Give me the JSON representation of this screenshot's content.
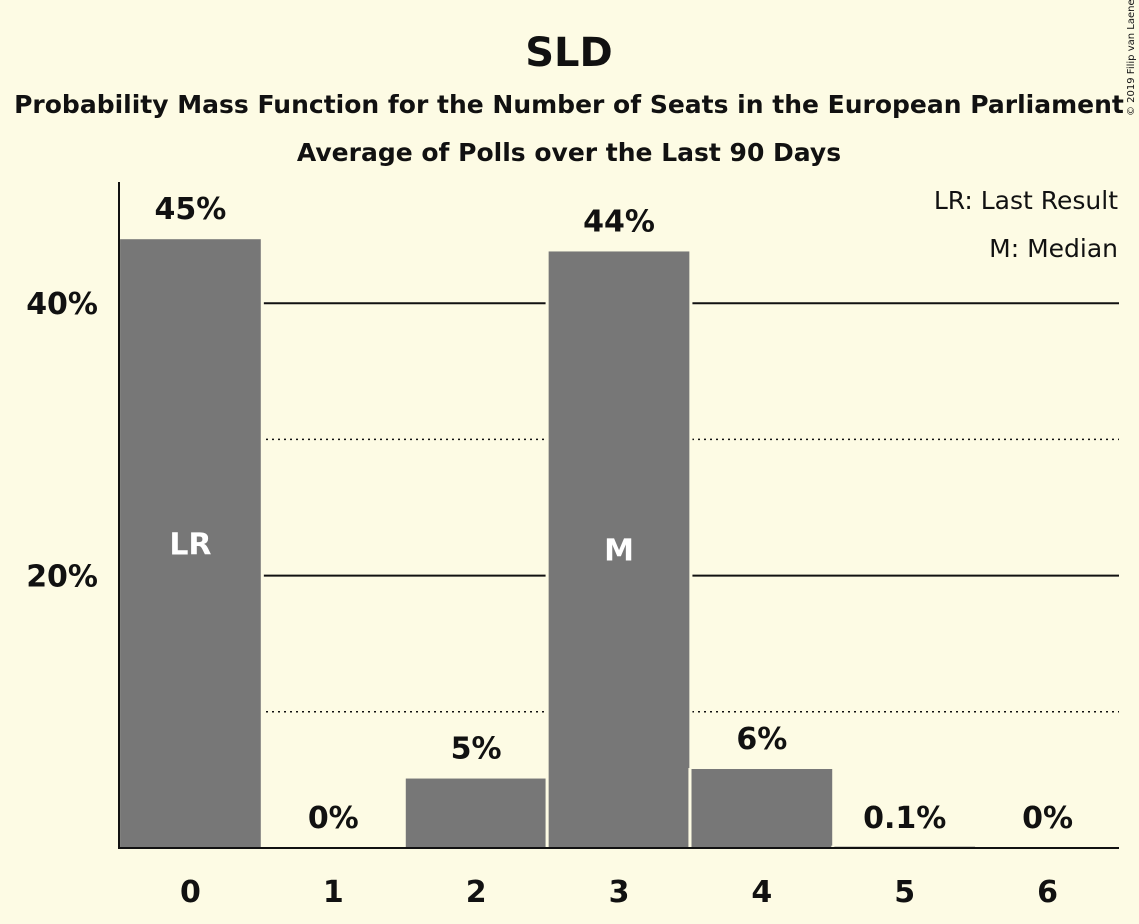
{
  "chart_data": {
    "type": "bar",
    "title": "SLD",
    "subtitle_lines": [
      "Probability Mass Function for the Number of Seats in the European Parliament",
      "Average of Polls over the Last 90 Days"
    ],
    "categories": [
      "0",
      "1",
      "2",
      "3",
      "4",
      "5",
      "6"
    ],
    "values": [
      44.7,
      0,
      5.1,
      43.8,
      5.8,
      0.1,
      0
    ],
    "data_labels": [
      "45%",
      "0%",
      "5%",
      "44%",
      "6%",
      "0.1%",
      "0%"
    ],
    "bar_annotations": [
      {
        "category_index": 0,
        "text": "LR"
      },
      {
        "category_index": 3,
        "text": "M"
      }
    ],
    "y_ticks": [
      {
        "value": 20,
        "label": "20%"
      },
      {
        "value": 40,
        "label": "40%"
      }
    ],
    "minor_gridlines": [
      10,
      30
    ],
    "ylim": [
      0,
      48.9
    ],
    "xlabel": "",
    "ylabel": "",
    "legend": {
      "position": "top-right",
      "entries": [
        "LR: Last Result",
        "M: Median"
      ]
    },
    "copyright": "© 2019 Filip van Laenen",
    "colors": {
      "background": "#fdfbe4",
      "bar": "#777777",
      "axis": "#111111",
      "bar_annotation": "#ffffff"
    }
  }
}
